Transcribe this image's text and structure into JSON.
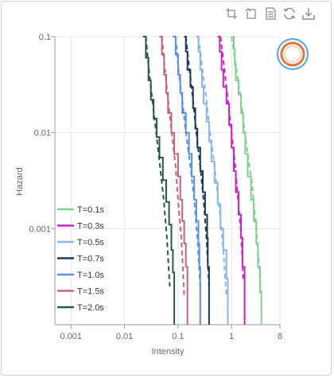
{
  "toolbar": {
    "icons": [
      "zoom-icon",
      "zoom-reset-icon",
      "data-view-icon",
      "restore-icon",
      "download-icon"
    ]
  },
  "colors": {
    "axis": "#999999",
    "grid": "#e6e6e6",
    "label": "#666666",
    "logo_ring": "#4da6e8",
    "logo_inner": "#e8743b"
  },
  "chart_data": {
    "type": "line",
    "x_scale": "log",
    "y_scale": "log",
    "xlabel": "Intensity",
    "ylabel": "Hazard",
    "xlim": [
      0.0005,
      8
    ],
    "ylim": [
      0.0001,
      0.1
    ],
    "x_ticks": [
      0.001,
      0.01,
      0.1,
      1,
      8
    ],
    "x_tick_labels": [
      "0.001",
      "0.01",
      "0.1",
      "1",
      "8"
    ],
    "y_ticks": [
      0.001,
      0.01,
      0.1
    ],
    "y_tick_labels": [
      "0.001",
      "0.01",
      "0.1"
    ],
    "grid": true,
    "legend_position": "bottom-left",
    "series": [
      {
        "name": "T=0.1s",
        "color": "#7fd18f",
        "x": [
          1.05,
          1.1,
          1.15,
          1.2,
          1.35,
          1.5,
          1.65,
          1.8,
          2.0,
          2.3,
          2.6,
          2.9,
          3.1,
          3.4,
          3.6
        ],
        "y": [
          0.1,
          0.075,
          0.05,
          0.035,
          0.025,
          0.016,
          0.01,
          0.006,
          0.0035,
          0.002,
          0.0012,
          0.0007,
          0.0004,
          0.00022,
          0.0001
        ],
        "fit_x": [
          1.0,
          1.2,
          1.45,
          1.7,
          2.0,
          2.4,
          2.8,
          3.2,
          3.6
        ],
        "fit_y": [
          0.1,
          0.05,
          0.025,
          0.012,
          0.006,
          0.003,
          0.0012,
          0.0005,
          0.00018
        ]
      },
      {
        "name": "T=0.3s",
        "color": "#d21fc4",
        "x": [
          0.55,
          0.6,
          0.65,
          0.7,
          0.8,
          0.9,
          1.0,
          1.1,
          1.2,
          1.35,
          1.5,
          1.6,
          1.75
        ],
        "y": [
          0.1,
          0.07,
          0.045,
          0.03,
          0.02,
          0.012,
          0.007,
          0.004,
          0.0024,
          0.0014,
          0.0008,
          0.0004,
          0.0001
        ],
        "fit_x": [
          0.62,
          0.72,
          0.85,
          1.0,
          1.15,
          1.3,
          1.5,
          1.65
        ],
        "fit_y": [
          0.1,
          0.05,
          0.022,
          0.01,
          0.005,
          0.0022,
          0.0009,
          0.0003
        ]
      },
      {
        "name": "T=0.5s",
        "color": "#8ab4ec",
        "x": [
          0.22,
          0.24,
          0.26,
          0.28,
          0.3,
          0.34,
          0.38,
          0.42,
          0.48,
          0.55,
          0.62,
          0.7,
          0.8,
          0.85
        ],
        "y": [
          0.1,
          0.07,
          0.045,
          0.03,
          0.02,
          0.013,
          0.008,
          0.005,
          0.003,
          0.0018,
          0.001,
          0.0006,
          0.0003,
          0.0001
        ],
        "fit_x": [
          0.24,
          0.28,
          0.33,
          0.38,
          0.45,
          0.52,
          0.6,
          0.7,
          0.8
        ],
        "fit_y": [
          0.1,
          0.05,
          0.025,
          0.012,
          0.006,
          0.003,
          0.0015,
          0.0006,
          0.0002
        ]
      },
      {
        "name": "T=0.7s",
        "color": "#1b3a5c",
        "x": [
          0.13,
          0.14,
          0.15,
          0.17,
          0.19,
          0.21,
          0.23,
          0.26,
          0.29,
          0.32,
          0.35,
          0.36,
          0.38
        ],
        "y": [
          0.1,
          0.07,
          0.045,
          0.03,
          0.018,
          0.011,
          0.007,
          0.004,
          0.0024,
          0.0014,
          0.0008,
          0.0004,
          0.0001
        ],
        "fit_x": [
          0.14,
          0.16,
          0.19,
          0.22,
          0.26,
          0.3,
          0.34,
          0.38
        ],
        "fit_y": [
          0.1,
          0.05,
          0.022,
          0.01,
          0.0045,
          0.002,
          0.0008,
          0.00025
        ]
      },
      {
        "name": "T=1.0s",
        "color": "#5b8ee6",
        "x": [
          0.08,
          0.09,
          0.1,
          0.11,
          0.12,
          0.14,
          0.16,
          0.18,
          0.2,
          0.22,
          0.24,
          0.25,
          0.26
        ],
        "y": [
          0.1,
          0.065,
          0.04,
          0.026,
          0.016,
          0.01,
          0.006,
          0.0035,
          0.002,
          0.0012,
          0.0007,
          0.0004,
          0.0001
        ],
        "fit_x": [
          0.09,
          0.1,
          0.12,
          0.14,
          0.17,
          0.2,
          0.23,
          0.26
        ],
        "fit_y": [
          0.1,
          0.05,
          0.022,
          0.01,
          0.0045,
          0.002,
          0.0008,
          0.00025
        ]
      },
      {
        "name": "T=1.5s",
        "color": "#c4637f",
        "x": [
          0.045,
          0.05,
          0.055,
          0.06,
          0.065,
          0.075,
          0.085,
          0.1,
          0.11,
          0.12,
          0.13,
          0.14,
          0.15
        ],
        "y": [
          0.1,
          0.065,
          0.04,
          0.026,
          0.016,
          0.01,
          0.006,
          0.0035,
          0.002,
          0.0012,
          0.0007,
          0.0004,
          0.0001
        ],
        "fit_x": [
          0.05,
          0.056,
          0.065,
          0.076,
          0.09,
          0.1,
          0.115,
          0.13
        ],
        "fit_y": [
          0.1,
          0.05,
          0.022,
          0.01,
          0.0045,
          0.002,
          0.0008,
          0.0002
        ]
      },
      {
        "name": "T=2.0s",
        "color": "#2a5a3c",
        "x": [
          0.022,
          0.025,
          0.028,
          0.031,
          0.035,
          0.04,
          0.045,
          0.052,
          0.06,
          0.068,
          0.075,
          0.08,
          0.085
        ],
        "y": [
          0.1,
          0.06,
          0.035,
          0.022,
          0.014,
          0.009,
          0.0055,
          0.0032,
          0.0019,
          0.0011,
          0.0006,
          0.00035,
          0.0001
        ],
        "fit_x": [
          0.025,
          0.028,
          0.033,
          0.039,
          0.046,
          0.054,
          0.062,
          0.07
        ],
        "fit_y": [
          0.1,
          0.05,
          0.022,
          0.01,
          0.0045,
          0.002,
          0.0008,
          0.00025
        ]
      }
    ]
  }
}
